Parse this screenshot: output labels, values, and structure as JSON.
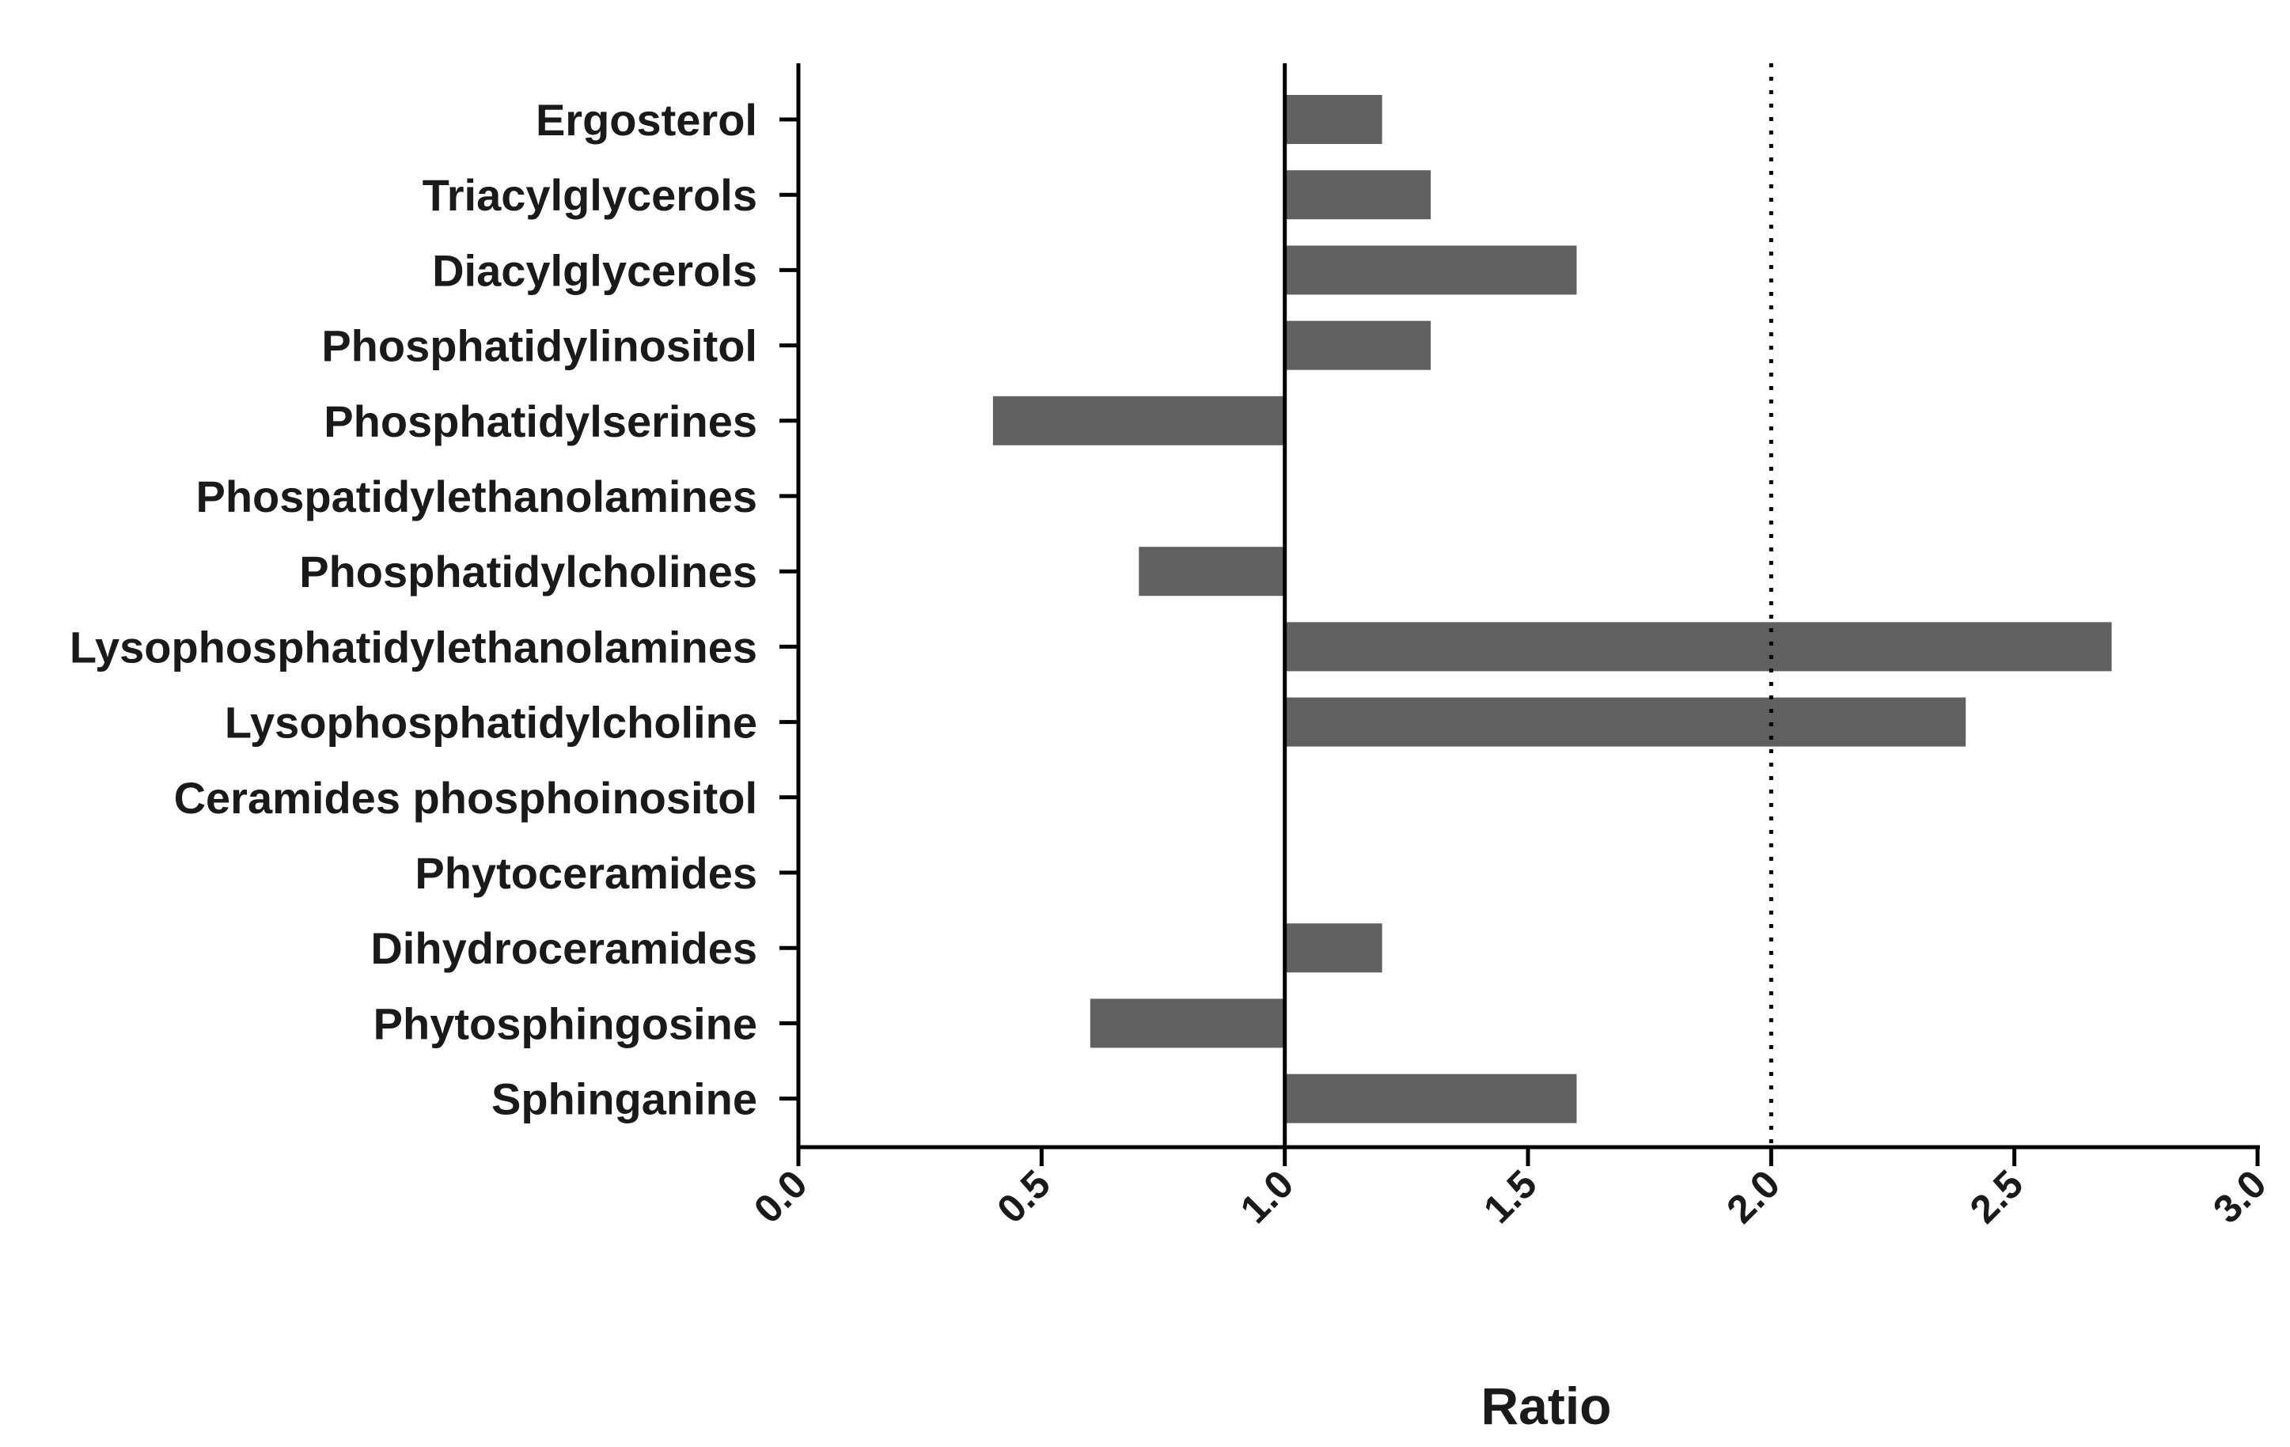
{
  "chart_data": {
    "type": "bar",
    "orientation": "horizontal",
    "title": "",
    "xlabel": "Ratio",
    "ylabel": "",
    "xlim": [
      0.0,
      3.0
    ],
    "x_ticks": [
      0.0,
      0.5,
      1.0,
      1.5,
      2.0,
      2.5,
      3.0
    ],
    "x_tick_labels": [
      "0.0",
      "0.5",
      "1.0",
      "1.5",
      "2.0",
      "2.5",
      "3.0"
    ],
    "baseline": 1.0,
    "reference_line": 2.0,
    "bar_color": "#606060",
    "grid": false,
    "categories": [
      "Ergosterol",
      "Triacylglycerols",
      "Diacylglycerols",
      "Phosphatidylinositol",
      "Phosphatidylserines",
      "Phospatidylethanolamines",
      "Phosphatidylcholines",
      "Lysophosphatidylethanolamines",
      "Lysophosphatidylcholine",
      "Ceramides phosphoinositol",
      "Phytoceramides",
      "Dihydroceramides",
      "Phytosphingosine",
      "Sphinganine"
    ],
    "values": [
      1.2,
      1.3,
      1.6,
      1.3,
      0.4,
      1.0,
      0.7,
      2.7,
      2.4,
      1.0,
      1.0,
      1.2,
      0.6,
      1.6
    ]
  }
}
